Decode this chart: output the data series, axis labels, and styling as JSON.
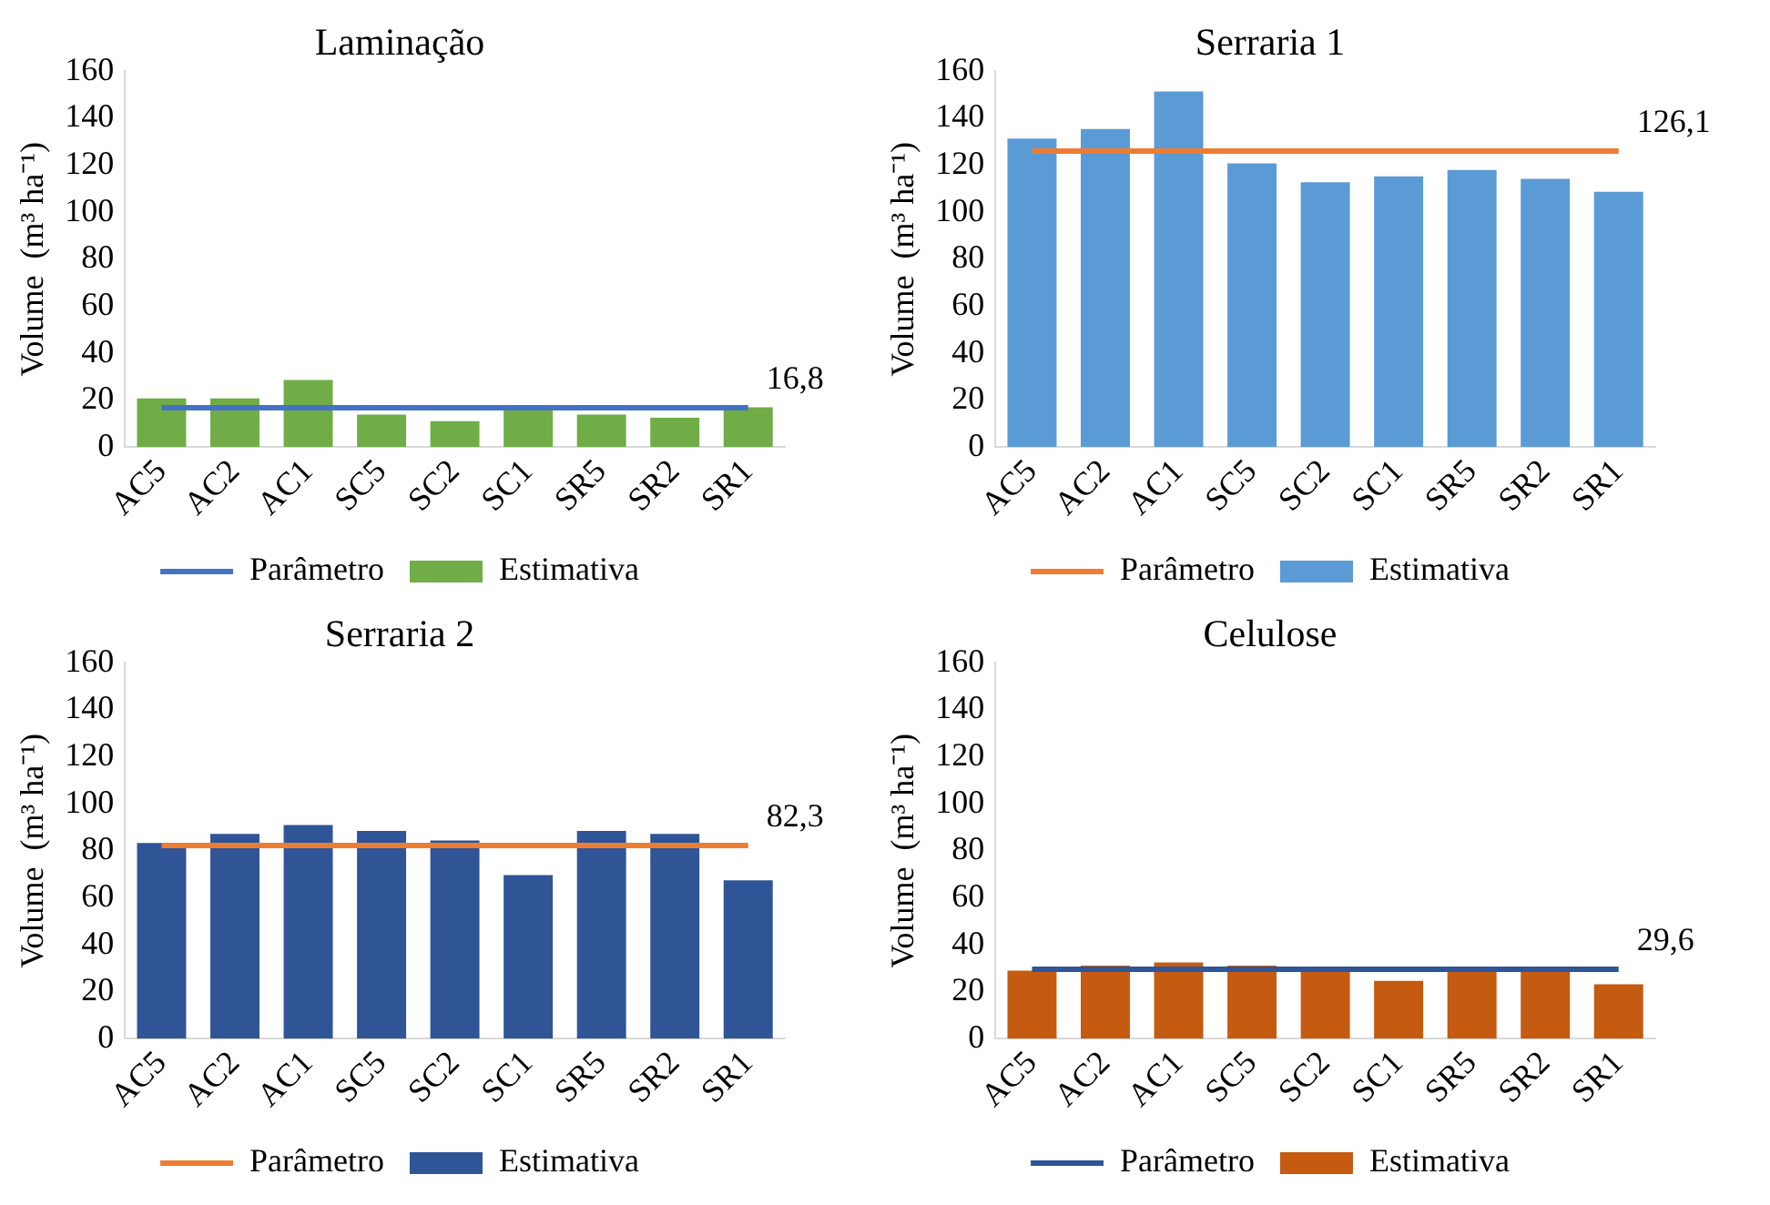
{
  "chart_data": [
    {
      "type": "bar",
      "title": "Laminação",
      "ylabel": "Volume  (m³ ha⁻¹)",
      "categories": [
        "AC5",
        "AC2",
        "AC1",
        "SC5",
        "SC2",
        "SC1",
        "SR5",
        "SR2",
        "SR1"
      ],
      "ylim": [
        0,
        160
      ],
      "yticks": [
        0,
        20,
        40,
        60,
        80,
        100,
        120,
        140,
        160
      ],
      "legend": "bottom",
      "marker": "none",
      "series": [
        {
          "name": "Estimativa",
          "color": "#70ad47",
          "values": [
            20.8,
            20.8,
            28.6,
            13.9,
            11.1,
            17,
            13.9,
            12.5,
            17
          ]
        },
        {
          "name": "Parâmetro",
          "type": "line",
          "color": "#4472c4",
          "values": [
            16.8,
            16.8,
            16.8,
            16.8,
            16.8,
            16.8,
            16.8,
            16.8,
            16.8
          ]
        }
      ],
      "annotations": [
        {
          "text": "16,8",
          "x": "SR1",
          "y": 16.8
        }
      ]
    },
    {
      "type": "bar",
      "title": "Serraria 1",
      "ylabel": "Volume  (m³ ha⁻¹)",
      "categories": [
        "AC5",
        "AC2",
        "AC1",
        "SC5",
        "SC2",
        "SC1",
        "SR5",
        "SR2",
        "SR1"
      ],
      "ylim": [
        0,
        160
      ],
      "yticks": [
        0,
        20,
        40,
        60,
        80,
        100,
        120,
        140,
        160
      ],
      "legend": "bottom",
      "marker": "none",
      "series": [
        {
          "name": "Estimativa",
          "color": "#5b9bd5",
          "values": [
            131.4,
            135.5,
            151.4,
            120.8,
            112.8,
            115.3,
            118,
            114.2,
            108.7
          ]
        },
        {
          "name": "Parâmetro",
          "type": "line",
          "color": "#ed7d31",
          "values": [
            126.1,
            126.1,
            126.1,
            126.1,
            126.1,
            126.1,
            126.1,
            126.1,
            126.1
          ]
        }
      ],
      "annotations": [
        {
          "text": "126,1",
          "x": "SR1",
          "y": 126.1
        }
      ]
    },
    {
      "type": "bar",
      "title": "Serraria 2",
      "ylabel": "Volume  (m³ ha⁻¹)",
      "categories": [
        "AC5",
        "AC2",
        "AC1",
        "SC5",
        "SC2",
        "SC1",
        "SR5",
        "SR2",
        "SR1"
      ],
      "ylim": [
        0,
        160
      ],
      "yticks": [
        0,
        20,
        40,
        60,
        80,
        100,
        120,
        140,
        160
      ],
      "legend": "bottom",
      "marker": "none",
      "series": [
        {
          "name": "Estimativa",
          "color": "#2f5597",
          "values": [
            83.3,
            87.2,
            91,
            88.5,
            84.4,
            69.7,
            88.5,
            87.2,
            67.5
          ]
        },
        {
          "name": "Parâmetro",
          "type": "line",
          "color": "#ed7d31",
          "values": [
            82.3,
            82.3,
            82.3,
            82.3,
            82.3,
            82.3,
            82.3,
            82.3,
            82.3
          ]
        }
      ],
      "annotations": [
        {
          "text": "82,3",
          "x": "SR1",
          "y": 82.3
        }
      ]
    },
    {
      "type": "bar",
      "title": "Celulose",
      "ylabel": "Volume  (m³ ha⁻¹)",
      "categories": [
        "AC5",
        "AC2",
        "AC1",
        "SC5",
        "SC2",
        "SC1",
        "SR5",
        "SR2",
        "SR1"
      ],
      "ylim": [
        0,
        160
      ],
      "yticks": [
        0,
        20,
        40,
        60,
        80,
        100,
        120,
        140,
        160
      ],
      "legend": "bottom",
      "marker": "none",
      "series": [
        {
          "name": "Estimativa",
          "color": "#c55a11",
          "values": [
            29,
            31.1,
            32.5,
            31.1,
            29,
            24.6,
            29,
            29,
            23.2
          ]
        },
        {
          "name": "Parâmetro",
          "type": "line",
          "color": "#2f5597",
          "values": [
            29.6,
            29.6,
            29.6,
            29.6,
            29.6,
            29.6,
            29.6,
            29.6,
            29.6
          ]
        }
      ],
      "annotations": [
        {
          "text": "29,6",
          "x": "SR1",
          "y": 29.6
        }
      ]
    }
  ]
}
